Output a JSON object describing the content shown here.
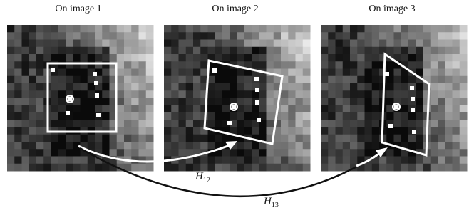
{
  "panels": [
    {
      "title": "On image 1"
    },
    {
      "title": "On image 2"
    },
    {
      "title": "On image 3"
    }
  ],
  "arrows": [
    {
      "symbol": "H",
      "subscript": "12"
    },
    {
      "symbol": "H",
      "subscript": "13"
    }
  ]
}
